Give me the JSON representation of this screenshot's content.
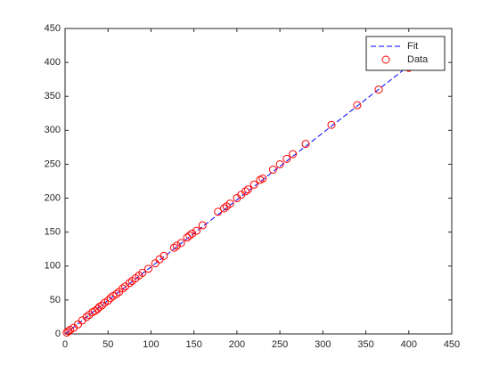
{
  "chart_data": {
    "type": "scatter",
    "xlim": [
      0,
      450
    ],
    "ylim": [
      0,
      450
    ],
    "xticks": [
      0,
      50,
      100,
      150,
      200,
      250,
      300,
      350,
      400,
      450
    ],
    "yticks": [
      0,
      50,
      100,
      150,
      200,
      250,
      300,
      350,
      400,
      450
    ],
    "grid": false,
    "legend": "top-right",
    "series": [
      {
        "name": "Fit",
        "kind": "line",
        "dash": true,
        "color": "#0000ff",
        "x": [
          0,
          400
        ],
        "y": [
          0,
          395
        ]
      },
      {
        "name": "Data",
        "kind": "markers",
        "color": "#ff0000",
        "x": [
          2,
          4,
          6,
          10,
          15,
          20,
          25,
          28,
          32,
          35,
          38,
          40,
          43,
          46,
          50,
          53,
          56,
          60,
          63,
          67,
          70,
          75,
          78,
          82,
          86,
          90,
          97,
          105,
          110,
          115,
          127,
          130,
          135,
          142,
          145,
          148,
          153,
          160,
          178,
          185,
          188,
          192,
          200,
          205,
          210,
          213,
          220,
          227,
          230,
          242,
          250,
          258,
          265,
          280,
          310,
          340,
          365,
          400
        ],
        "y": [
          2,
          4,
          6,
          9,
          14,
          20,
          25,
          28,
          32,
          34,
          37,
          40,
          42,
          46,
          49,
          53,
          56,
          59,
          62,
          67,
          70,
          75,
          78,
          82,
          86,
          90,
          96,
          104,
          110,
          115,
          127,
          130,
          134,
          142,
          145,
          148,
          152,
          160,
          180,
          185,
          188,
          192,
          200,
          205,
          210,
          213,
          220,
          227,
          229,
          242,
          250,
          258,
          265,
          280,
          308,
          337,
          360,
          392
        ]
      }
    ]
  }
}
